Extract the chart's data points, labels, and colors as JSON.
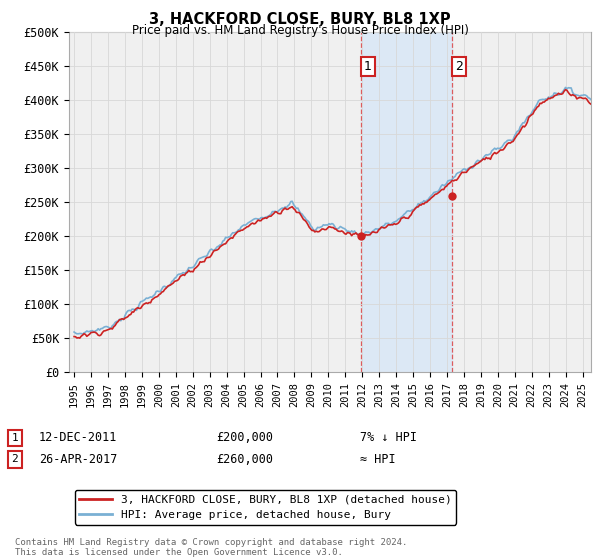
{
  "title": "3, HACKFORD CLOSE, BURY, BL8 1XP",
  "subtitle": "Price paid vs. HM Land Registry's House Price Index (HPI)",
  "ylabel_ticks": [
    "£0",
    "£50K",
    "£100K",
    "£150K",
    "£200K",
    "£250K",
    "£300K",
    "£350K",
    "£400K",
    "£450K",
    "£500K"
  ],
  "ytick_values": [
    0,
    50000,
    100000,
    150000,
    200000,
    250000,
    300000,
    350000,
    400000,
    450000,
    500000
  ],
  "ylim": [
    0,
    500000
  ],
  "xlim_start": 1994.7,
  "xlim_end": 2025.5,
  "hpi_color": "#7ab0d4",
  "price_color": "#cc2222",
  "background_color": "#ffffff",
  "plot_bg_color": "#f0f0f0",
  "grid_color": "#d8d8d8",
  "transaction1_x": 2011.95,
  "transaction1_y": 200000,
  "transaction2_x": 2017.32,
  "transaction2_y": 260000,
  "span_color": "#dce8f5",
  "vline_color": "#dd4444",
  "marker_box_color": "#cc2222",
  "legend_label_price": "3, HACKFORD CLOSE, BURY, BL8 1XP (detached house)",
  "legend_label_hpi": "HPI: Average price, detached house, Bury",
  "note1_date": "12-DEC-2011",
  "note1_price": "£200,000",
  "note1_hpi": "7% ↓ HPI",
  "note2_date": "26-APR-2017",
  "note2_price": "£260,000",
  "note2_hpi": "≈ HPI",
  "footer": "Contains HM Land Registry data © Crown copyright and database right 2024.\nThis data is licensed under the Open Government Licence v3.0."
}
